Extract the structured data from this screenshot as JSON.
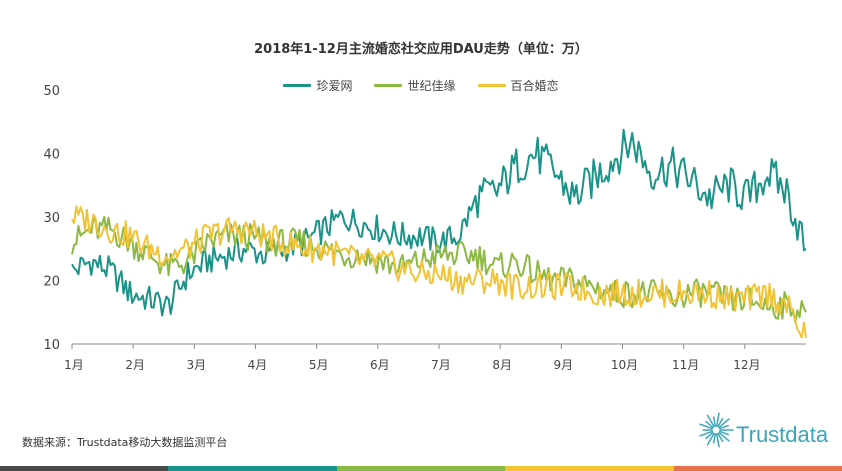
{
  "chart_data": {
    "type": "line",
    "title": "2018年1-12月主流婚恋社交应用DAU走势（单位：万）",
    "xlabel": "",
    "ylabel": "",
    "ylim": [
      10,
      50
    ],
    "yticks": [
      10,
      20,
      30,
      40,
      50
    ],
    "x_tick_labels": [
      "1月",
      "2月",
      "3月",
      "4月",
      "5月",
      "6月",
      "7月",
      "8月",
      "9月",
      "10月",
      "11月",
      "12月"
    ],
    "grid": false,
    "legend_position": "top-center",
    "series": [
      {
        "name": "珍爱网",
        "color": "#1a9389",
        "values": [
          21.5,
          23,
          21.5,
          18,
          17,
          16,
          21,
          23,
          24,
          25,
          24,
          25,
          26,
          28,
          30,
          29,
          28,
          27,
          27,
          26,
          27,
          33,
          34,
          38,
          40,
          37,
          33,
          36,
          39,
          42,
          37,
          38,
          36,
          33,
          35,
          33,
          37,
          34,
          25
        ]
      },
      {
        "name": "世纪佳缘",
        "color": "#8cb844",
        "values": [
          26,
          28,
          28,
          26,
          24,
          22,
          23,
          26,
          27,
          27,
          26,
          26,
          26,
          25,
          24,
          24,
          23,
          22,
          23,
          24,
          24,
          24,
          22,
          23,
          21,
          20,
          20,
          19,
          18,
          18,
          18,
          17,
          18,
          18,
          17,
          17,
          16,
          16,
          15
        ]
      },
      {
        "name": "百合婚恋",
        "color": "#f2c435",
        "values": [
          30,
          29.5,
          28,
          27,
          25,
          24,
          25,
          27,
          28,
          28,
          27,
          26,
          25,
          25,
          24,
          23,
          23,
          22,
          21,
          21,
          20,
          20,
          20,
          19,
          19,
          19,
          19,
          18,
          18,
          18,
          18,
          18,
          18,
          18,
          17,
          17,
          18,
          16,
          11
        ]
      }
    ]
  },
  "source_text": "数据来源：Trustdata移动大数据监测平台",
  "brand_text": "Trustdata",
  "footer_colors": [
    "#4a4a4a",
    "#1a9389",
    "#8cb844",
    "#f2c435",
    "#e8734a"
  ]
}
